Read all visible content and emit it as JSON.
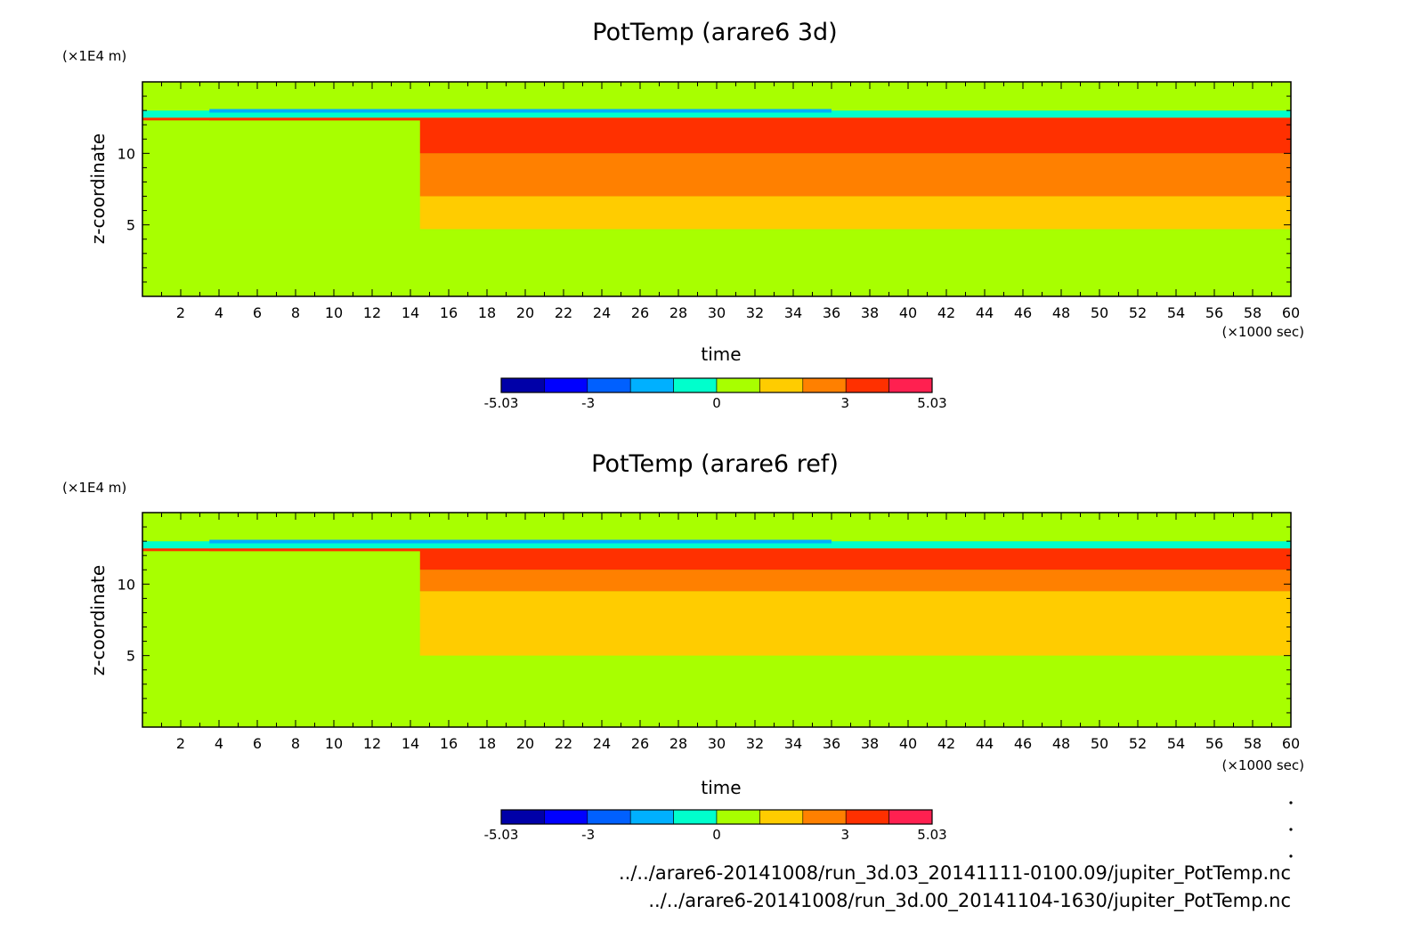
{
  "chart_data": [
    {
      "type": "heatmap",
      "title": "PotTemp (arare6 3d)",
      "xlabel": "time",
      "x_unit": "(×1000 sec)",
      "ylabel": "z-coordinate",
      "y_unit": "(×1E4 m)",
      "xlim": [
        0,
        60
      ],
      "ylim": [
        0,
        15
      ],
      "x_ticks": [
        "2",
        "4",
        "6",
        "8",
        "10",
        "12",
        "14",
        "16",
        "18",
        "20",
        "22",
        "24",
        "26",
        "28",
        "30",
        "32",
        "34",
        "36",
        "38",
        "40",
        "42",
        "44",
        "46",
        "48",
        "50",
        "52",
        "54",
        "56",
        "58",
        "60"
      ],
      "y_ticks": [
        "5",
        "10"
      ],
      "colorbar": {
        "ticks": [
          "-5.03",
          "-3",
          "0",
          "3",
          "5.03"
        ],
        "range": [
          -5.03,
          5.03
        ],
        "levels": 10,
        "colors": [
          "#0000a8",
          "#0000ff",
          "#0060ff",
          "#00b0ff",
          "#00ffcc",
          "#a8ff00",
          "#ffcc00",
          "#ff8000",
          "#ff3000",
          "#ff2050"
        ]
      },
      "bands": [
        {
          "z_top": 3.4,
          "value": 0.0
        },
        {
          "z_top": 4.7,
          "value": 0.9
        },
        {
          "z_top": 7.0,
          "value": 1.9
        },
        {
          "z_top": 10.0,
          "value": 2.9
        },
        {
          "z_top": 12.5,
          "value": 3.9
        },
        {
          "z_top": 13.0,
          "value": -0.6
        },
        {
          "z_top": 15.0,
          "value": 0.0
        }
      ]
    },
    {
      "type": "heatmap",
      "title": "PotTemp (arare6 ref)",
      "xlabel": "time",
      "x_unit": "(×1000 sec)",
      "ylabel": "z-coordinate",
      "y_unit": "(×1E4 m)",
      "xlim": [
        0,
        60
      ],
      "ylim": [
        0,
        15
      ],
      "x_ticks": [
        "2",
        "4",
        "6",
        "8",
        "10",
        "12",
        "14",
        "16",
        "18",
        "20",
        "22",
        "24",
        "26",
        "28",
        "30",
        "32",
        "34",
        "36",
        "38",
        "40",
        "42",
        "44",
        "46",
        "48",
        "50",
        "52",
        "54",
        "56",
        "58",
        "60"
      ],
      "y_ticks": [
        "5",
        "10"
      ],
      "colorbar": {
        "ticks": [
          "-5.03",
          "-3",
          "0",
          "3",
          "5.03"
        ],
        "range": [
          -5.03,
          5.03
        ],
        "levels": 10,
        "colors": [
          "#0000a8",
          "#0000ff",
          "#0060ff",
          "#00b0ff",
          "#00ffcc",
          "#a8ff00",
          "#ffcc00",
          "#ff8000",
          "#ff3000",
          "#ff2050"
        ]
      },
      "bands": [
        {
          "z_top": 3.4,
          "value": 0.0
        },
        {
          "z_top": 5.0,
          "value": 0.9
        },
        {
          "z_top": 9.5,
          "value": 1.9
        },
        {
          "z_top": 11.0,
          "value": 2.9
        },
        {
          "z_top": 12.5,
          "value": 3.9
        },
        {
          "z_top": 13.0,
          "value": -0.6
        },
        {
          "z_top": 15.0,
          "value": 0.0
        }
      ]
    }
  ],
  "source_files": [
    "../../arare6-20141008/run_3d.03_20141111-0100.09/jupiter_PotTemp.nc",
    "../../arare6-20141008/run_3d.00_20141104-1630/jupiter_PotTemp.nc"
  ]
}
